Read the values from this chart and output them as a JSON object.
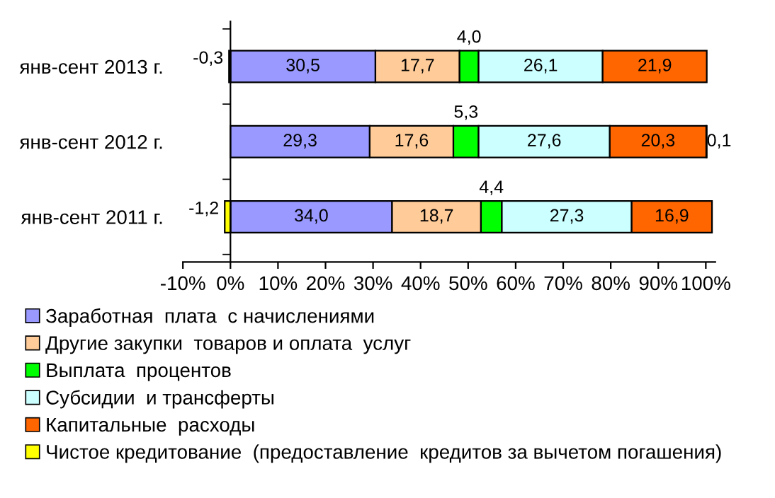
{
  "chart_data": {
    "type": "bar",
    "orientation": "horizontal",
    "stacked": true,
    "categories": [
      "янв-сент 2013 г.",
      "янв-сент 2012 г.",
      "янв-сент 2011 г."
    ],
    "series": [
      {
        "name": "Заработная  плата  с начислениями",
        "color": "#9999ff",
        "values": [
          30.5,
          29.3,
          34.0
        ],
        "value_labels": [
          "30,5",
          "29,3",
          "34,0"
        ]
      },
      {
        "name": "Другие закупки  товаров и оплата  услуг",
        "color": "#ffcc99",
        "values": [
          17.7,
          17.6,
          18.7
        ],
        "value_labels": [
          "17,7",
          "17,6",
          "18,7"
        ]
      },
      {
        "name": "Выплата  процентов",
        "color": "#00ff00",
        "values": [
          4.0,
          5.3,
          4.4
        ],
        "value_labels": [
          "4,0",
          "5,3",
          "4,4"
        ]
      },
      {
        "name": "Субсидии  и трансферты",
        "color": "#ccffff",
        "values": [
          26.1,
          27.6,
          27.3
        ],
        "value_labels": [
          "26,1",
          "27,6",
          "27,3"
        ]
      },
      {
        "name": "Капитальные  расходы",
        "color": "#ff6600",
        "values": [
          21.9,
          20.3,
          16.9
        ],
        "value_labels": [
          "21,9",
          "20,3",
          "16,9"
        ]
      },
      {
        "name": "Чистое кредитование  (предоставление  кредитов за вычетом погашения)",
        "color": "#ffff00",
        "values": [
          -0.3,
          0.1,
          -1.2
        ],
        "value_labels": [
          "-0,3",
          "0,1",
          "-1,2"
        ]
      }
    ],
    "xlim": [
      -10,
      102
    ],
    "xticks": [
      {
        "value": -10,
        "label": "-10%"
      },
      {
        "value": 0,
        "label": "0%"
      },
      {
        "value": 10,
        "label": "10%"
      },
      {
        "value": 20,
        "label": "20%"
      },
      {
        "value": 30,
        "label": "30%"
      },
      {
        "value": 40,
        "label": "40%"
      },
      {
        "value": 50,
        "label": "50%"
      },
      {
        "value": 60,
        "label": "60%"
      },
      {
        "value": 70,
        "label": "70%"
      },
      {
        "value": 80,
        "label": "80%"
      },
      {
        "value": 90,
        "label": "90%"
      },
      {
        "value": 100,
        "label": "100%"
      }
    ],
    "legend": "bottom"
  }
}
